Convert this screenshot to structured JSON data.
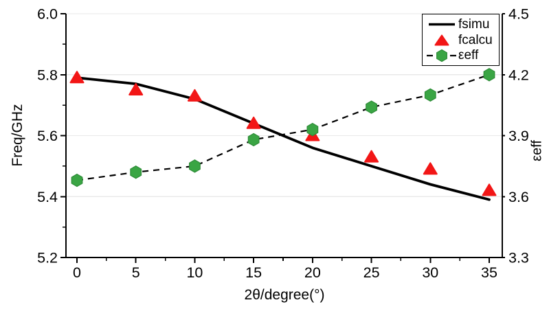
{
  "figure": {
    "background_color": "#ffffff",
    "axis_color": "#000000",
    "grid_color": "#e9e9e9",
    "accent_red": "#f21616",
    "accent_green": "#3aa544"
  },
  "axis_labels": {
    "left": "Freq/GHz",
    "bottom": "2θ/degree(°)",
    "right": "εeff"
  },
  "legend": {
    "position": "top-right",
    "entries": [
      {
        "label": "fsimu",
        "swatch": "solid-black-line"
      },
      {
        "label": "fcalcu",
        "swatch": "red-triangle"
      },
      {
        "label": "εeff",
        "swatch": "dashed-line-green-hexagon"
      }
    ]
  },
  "chart_data": {
    "type": "line",
    "title": "",
    "x": [
      0,
      5,
      10,
      15,
      20,
      25,
      30,
      35
    ],
    "x_axis": {
      "label": "2θ/degree(°)",
      "tick_labels": [
        "0",
        "5",
        "10",
        "15",
        "20",
        "25",
        "30",
        "35"
      ],
      "major_ticks": [
        0,
        5,
        10,
        15,
        20,
        25,
        30,
        35
      ],
      "minor_ticks": [
        2.5,
        7.5,
        12.5,
        17.5,
        22.5,
        27.5,
        32.5
      ],
      "range": [
        -0.95,
        36.1
      ]
    },
    "y_left_axis": {
      "label": "Freq/GHz",
      "tick_labels": [
        "5.2",
        "5.4",
        "5.6",
        "5.8",
        "6.0"
      ],
      "major_ticks": [
        5.2,
        5.4,
        5.6,
        5.8,
        6.0
      ],
      "minor_ticks": [
        5.3,
        5.5,
        5.7,
        5.9
      ],
      "range": [
        5.2,
        6.0
      ]
    },
    "y_right_axis": {
      "label": "εeff",
      "tick_labels": [
        "3.3",
        "3.6",
        "3.9",
        "4.2",
        "4.5"
      ],
      "major_ticks": [
        3.3,
        3.6,
        3.9,
        4.2,
        4.5
      ],
      "range": [
        3.3,
        4.5
      ]
    },
    "grid": "horizontal",
    "legend_position": "top-right",
    "series": [
      {
        "name": "fsimu",
        "axis": "left",
        "line": "solid",
        "marker": "none",
        "color": "#000000",
        "values": [
          5.79,
          5.77,
          5.72,
          5.64,
          5.56,
          5.5,
          5.44,
          5.39
        ]
      },
      {
        "name": "fcalcu",
        "axis": "left",
        "line": "none",
        "marker": "triangle",
        "color": "#f21616",
        "values": [
          5.79,
          5.75,
          5.73,
          5.64,
          5.6,
          5.53,
          5.49,
          5.42
        ]
      },
      {
        "name": "εeff",
        "axis": "right",
        "line": "dashed",
        "marker": "hexagon",
        "color": "#000000",
        "marker_color": "#3aa544",
        "marker_edge_color": "#2e8c38",
        "values": [
          3.68,
          3.72,
          3.75,
          3.88,
          3.93,
          4.04,
          4.1,
          4.2
        ]
      }
    ]
  }
}
